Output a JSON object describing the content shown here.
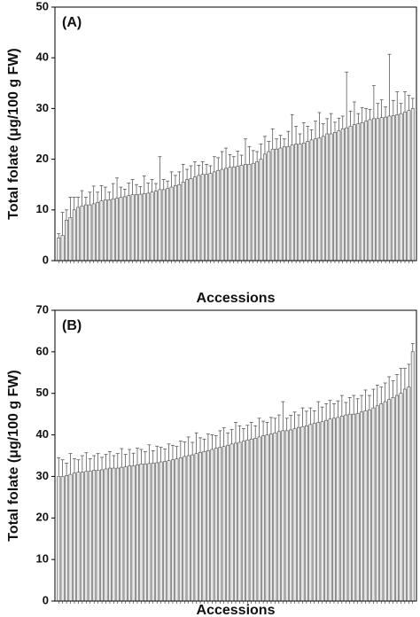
{
  "chart_data": [
    {
      "type": "bar",
      "title": "(A)",
      "y_label": "Total folate (μg/100 g FW)",
      "x_label": "Accessions",
      "color": "#e6e6e6",
      "edge_color": "#333333",
      "ylim": [
        0,
        50
      ],
      "yticks": [
        0,
        10,
        20,
        30,
        40,
        50
      ],
      "values": [
        4.5,
        5,
        8,
        8.5,
        10,
        10.5,
        10.8,
        11,
        11,
        11.2,
        11.5,
        11.8,
        12,
        12,
        12.2,
        12.3,
        12.5,
        12.6,
        12.8,
        13,
        13,
        13.1,
        13.2,
        13.3,
        13.5,
        13.7,
        14,
        14,
        14.2,
        14.5,
        14.8,
        15,
        15.5,
        16,
        16.2,
        16.5,
        16.8,
        17,
        17,
        17.2,
        17.5,
        17.8,
        18,
        18.2,
        18.4,
        18.5,
        18.6,
        18.8,
        19,
        19,
        19.2,
        19.5,
        20,
        21,
        21.5,
        22,
        22,
        22.2,
        22.5,
        22.5,
        22.8,
        23,
        23,
        23.2,
        23.5,
        23.8,
        24,
        24.2,
        24.5,
        25,
        25,
        25.3,
        25.6,
        26,
        26.2,
        26.5,
        26.8,
        27,
        27.2,
        27.5,
        27.8,
        28,
        28,
        28.2,
        28.3,
        28.5,
        28.6,
        28.8,
        29,
        29.3,
        29.6,
        30
      ],
      "errors": [
        0.8,
        4.5,
        2,
        4,
        2.5,
        2,
        3,
        1.5,
        2.5,
        3.5,
        2,
        3,
        2.5,
        1.5,
        3,
        4,
        2,
        1.5,
        2.5,
        3,
        2,
        1.5,
        3.5,
        2,
        2.5,
        1.5,
        6.5,
        2,
        1.5,
        3,
        2,
        2.5,
        3.5,
        2,
        2.5,
        3,
        2,
        2.5,
        2,
        1.5,
        3,
        2.5,
        3.5,
        4,
        2.5,
        2,
        3,
        2,
        5,
        3.5,
        2.5,
        2,
        3,
        3.5,
        2,
        4,
        2,
        2.5,
        1.5,
        3,
        6,
        3.5,
        2,
        4,
        3,
        2,
        3.5,
        5,
        2.5,
        3,
        4,
        2,
        2.5,
        2.5,
        11,
        3,
        4.5,
        2,
        3,
        2.5,
        2,
        6.5,
        3,
        3.5,
        2,
        12.2,
        3,
        4.5,
        2,
        4,
        3,
        2
      ]
    },
    {
      "type": "bar",
      "title": "(B)",
      "y_label": "Total folate (μg/100 g FW)",
      "x_label": "Accessions",
      "color": "#e6e6e6",
      "edge_color": "#333333",
      "ylim": [
        0,
        70
      ],
      "yticks": [
        0,
        10,
        20,
        30,
        40,
        50,
        60,
        70
      ],
      "values": [
        30,
        30,
        30.2,
        30.5,
        30.8,
        31,
        31,
        31.2,
        31.3,
        31.5,
        31.5,
        31.6,
        31.8,
        32,
        32,
        32,
        32.2,
        32.3,
        32.5,
        32.6,
        32.8,
        33,
        33,
        33.1,
        33.2,
        33.3,
        33.5,
        33.6,
        33.8,
        34,
        34.2,
        34.5,
        34.8,
        35,
        35.2,
        35.5,
        35.8,
        36,
        36.2,
        36.5,
        36.8,
        37,
        37.2,
        37.5,
        37.8,
        38,
        38.2,
        38.5,
        38.8,
        39,
        39.2,
        39.5,
        39.8,
        40,
        40.2,
        40.5,
        40.8,
        41,
        41,
        41.2,
        41.5,
        41.8,
        42,
        42.2,
        42.5,
        42.8,
        43,
        43.2,
        43.5,
        43.8,
        44,
        44.2,
        44.5,
        44.8,
        45,
        45,
        45.2,
        45.5,
        45.8,
        46,
        46.5,
        47,
        47.5,
        48,
        48.5,
        49,
        49.5,
        50,
        51,
        51.5,
        60
      ],
      "errors": [
        4.5,
        4,
        3,
        5,
        3.5,
        3,
        4,
        4.5,
        3,
        3.5,
        4,
        3,
        3.5,
        4,
        3,
        3.5,
        4.5,
        3,
        4,
        3,
        4,
        3.5,
        3,
        4.5,
        3,
        4,
        3.5,
        3,
        4,
        3.5,
        3,
        4,
        3.5,
        4.5,
        3,
        5,
        3.5,
        3,
        4,
        3.5,
        3,
        4,
        4.5,
        3,
        3.5,
        5,
        4,
        3,
        3.5,
        4,
        3,
        4.5,
        3.5,
        3,
        4,
        3.5,
        4,
        7,
        3,
        3.5,
        4,
        3,
        4.5,
        3.5,
        4,
        3,
        5,
        3.5,
        4,
        4.5,
        3.5,
        4,
        5,
        3,
        4,
        4.5,
        3.5,
        4,
        5,
        3.5,
        4.5,
        5,
        4,
        4.5,
        5.5,
        4,
        5,
        6,
        5,
        5.5,
        2
      ]
    }
  ]
}
